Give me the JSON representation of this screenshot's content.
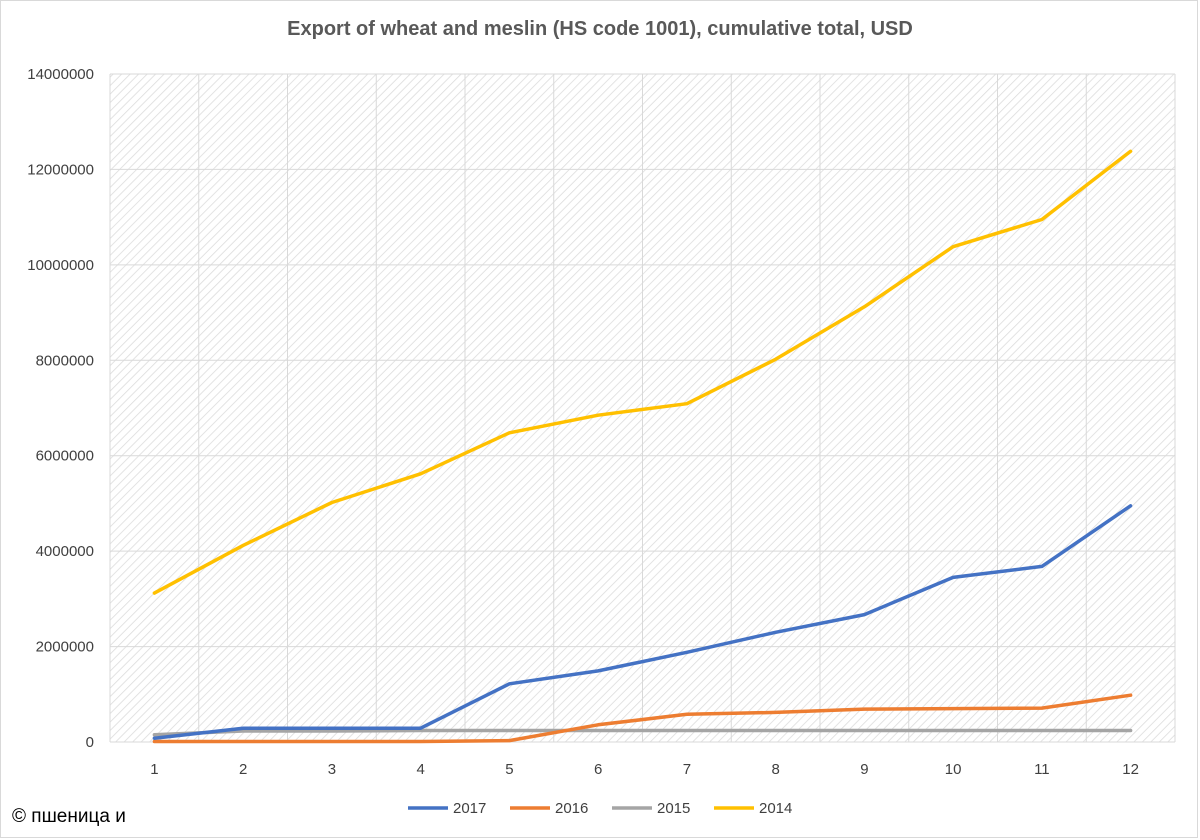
{
  "chart_data": {
    "type": "line",
    "title": "Export of wheat and meslin (HS code 1001), cumulative total, USD",
    "xlabel": "",
    "ylabel": "",
    "x": [
      1,
      2,
      3,
      4,
      5,
      6,
      7,
      8,
      9,
      10,
      11,
      12
    ],
    "ylim": [
      0,
      14000000
    ],
    "y_ticks": [
      0,
      2000000,
      4000000,
      6000000,
      8000000,
      10000000,
      12000000,
      14000000
    ],
    "grid": true,
    "legend_position": "bottom",
    "series": [
      {
        "name": "2017",
        "color": "#4472c4",
        "values": [
          80000,
          290000,
          290000,
          290000,
          1220000,
          1490000,
          1880000,
          2300000,
          2670000,
          3450000,
          3680000,
          4950000
        ]
      },
      {
        "name": "2016",
        "color": "#ed7d31",
        "values": [
          10000,
          10000,
          10000,
          10000,
          30000,
          360000,
          580000,
          620000,
          690000,
          700000,
          710000,
          980000
        ]
      },
      {
        "name": "2015",
        "color": "#a5a5a5",
        "values": [
          150000,
          230000,
          230000,
          240000,
          240000,
          240000,
          240000,
          240000,
          240000,
          240000,
          240000,
          240000
        ]
      },
      {
        "name": "2014",
        "color": "#ffc000",
        "values": [
          3120000,
          4120000,
          5020000,
          5620000,
          6480000,
          6850000,
          7090000,
          8020000,
          9120000,
          10380000,
          10950000,
          12380000
        ]
      }
    ]
  },
  "footer": {
    "copyright": "© пшеница и"
  }
}
